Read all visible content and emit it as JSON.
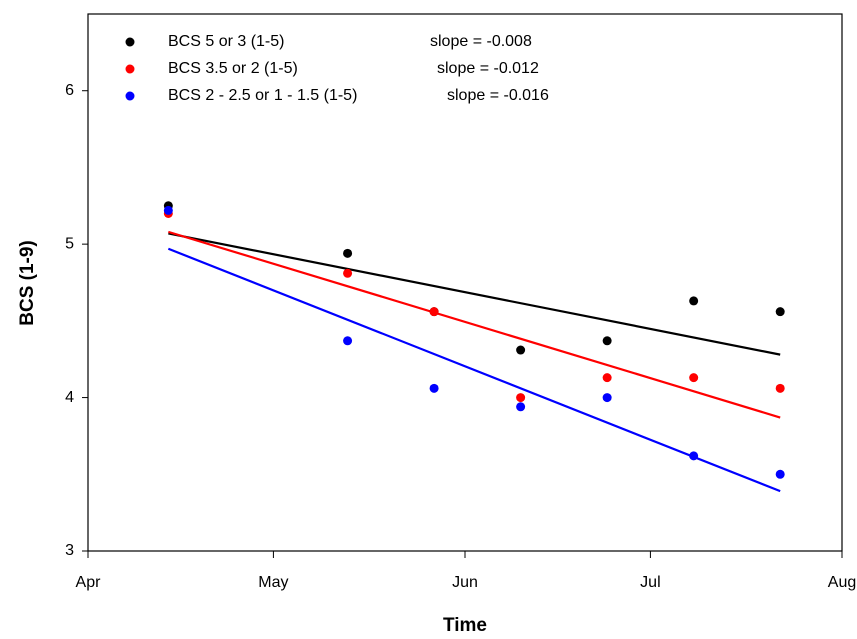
{
  "chart_data": {
    "type": "scatter",
    "x_label": "Time",
    "y_label": "BCS (1-9)",
    "x": [
      13,
      42,
      56,
      70,
      84,
      98,
      112
    ],
    "xlim": [
      0,
      122
    ],
    "xticks": [
      {
        "value": 0,
        "label": "Apr"
      },
      {
        "value": 30,
        "label": "May"
      },
      {
        "value": 61,
        "label": "Jun"
      },
      {
        "value": 91,
        "label": "Jul"
      },
      {
        "value": 122,
        "label": "Aug"
      }
    ],
    "ylim": [
      3,
      6.5
    ],
    "yticks": [
      3,
      4,
      5,
      6
    ],
    "legend": "upper-left",
    "series": [
      {
        "name": "BCS 5 or 3 (1-5)",
        "color": "#000000",
        "slope_label": "slope = -0.008",
        "values": [
          5.25,
          4.94,
          4.56,
          4.31,
          4.37,
          4.63,
          4.56
        ],
        "fit": {
          "x": [
            13,
            112
          ],
          "y": [
            5.07,
            4.28
          ]
        }
      },
      {
        "name": "BCS 3.5 or 2 (1-5)",
        "color": "#ff0000",
        "slope_label": "slope = -0.012",
        "values": [
          5.2,
          4.81,
          4.56,
          4.0,
          4.13,
          4.13,
          4.06
        ],
        "fit": {
          "x": [
            13,
            112
          ],
          "y": [
            5.08,
            3.87
          ]
        }
      },
      {
        "name": "BCS 2 - 2.5 or 1 - 1.5 (1-5)",
        "color": "#0000ff",
        "slope_label": "slope = -0.016",
        "values": [
          5.22,
          4.37,
          4.06,
          3.94,
          4.0,
          3.62,
          3.5
        ],
        "fit": {
          "x": [
            13,
            112
          ],
          "y": [
            4.97,
            3.39
          ]
        }
      }
    ]
  }
}
